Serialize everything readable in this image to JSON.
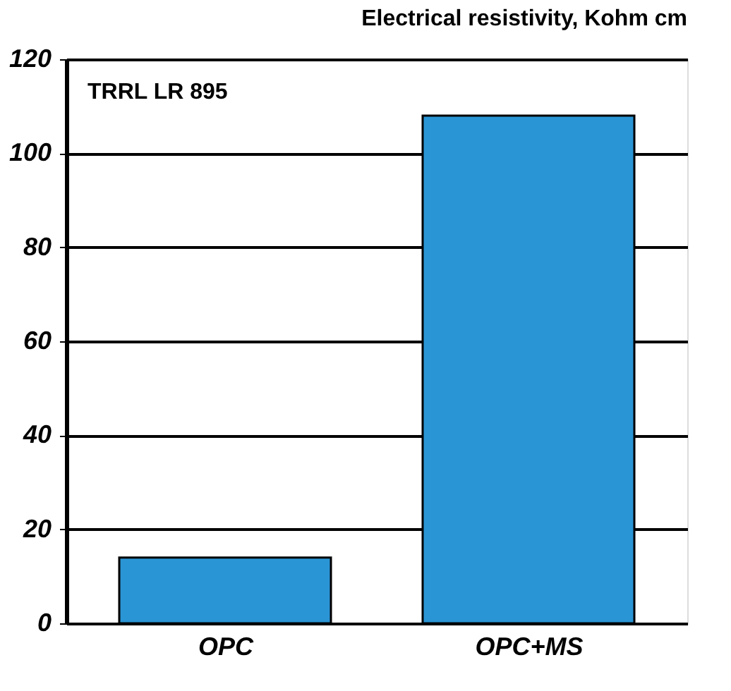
{
  "chart_data": {
    "type": "bar",
    "title": "Electrical resistivity, Kohm cm",
    "annotations": [
      "TRRL LR 895"
    ],
    "categories": [
      "OPC",
      "OPC+MS"
    ],
    "values": [
      14,
      108
    ],
    "color": "#2a95d5",
    "ylim": [
      0,
      120
    ],
    "yticks": [
      0,
      20,
      40,
      60,
      80,
      100,
      120
    ],
    "grid": "y"
  }
}
